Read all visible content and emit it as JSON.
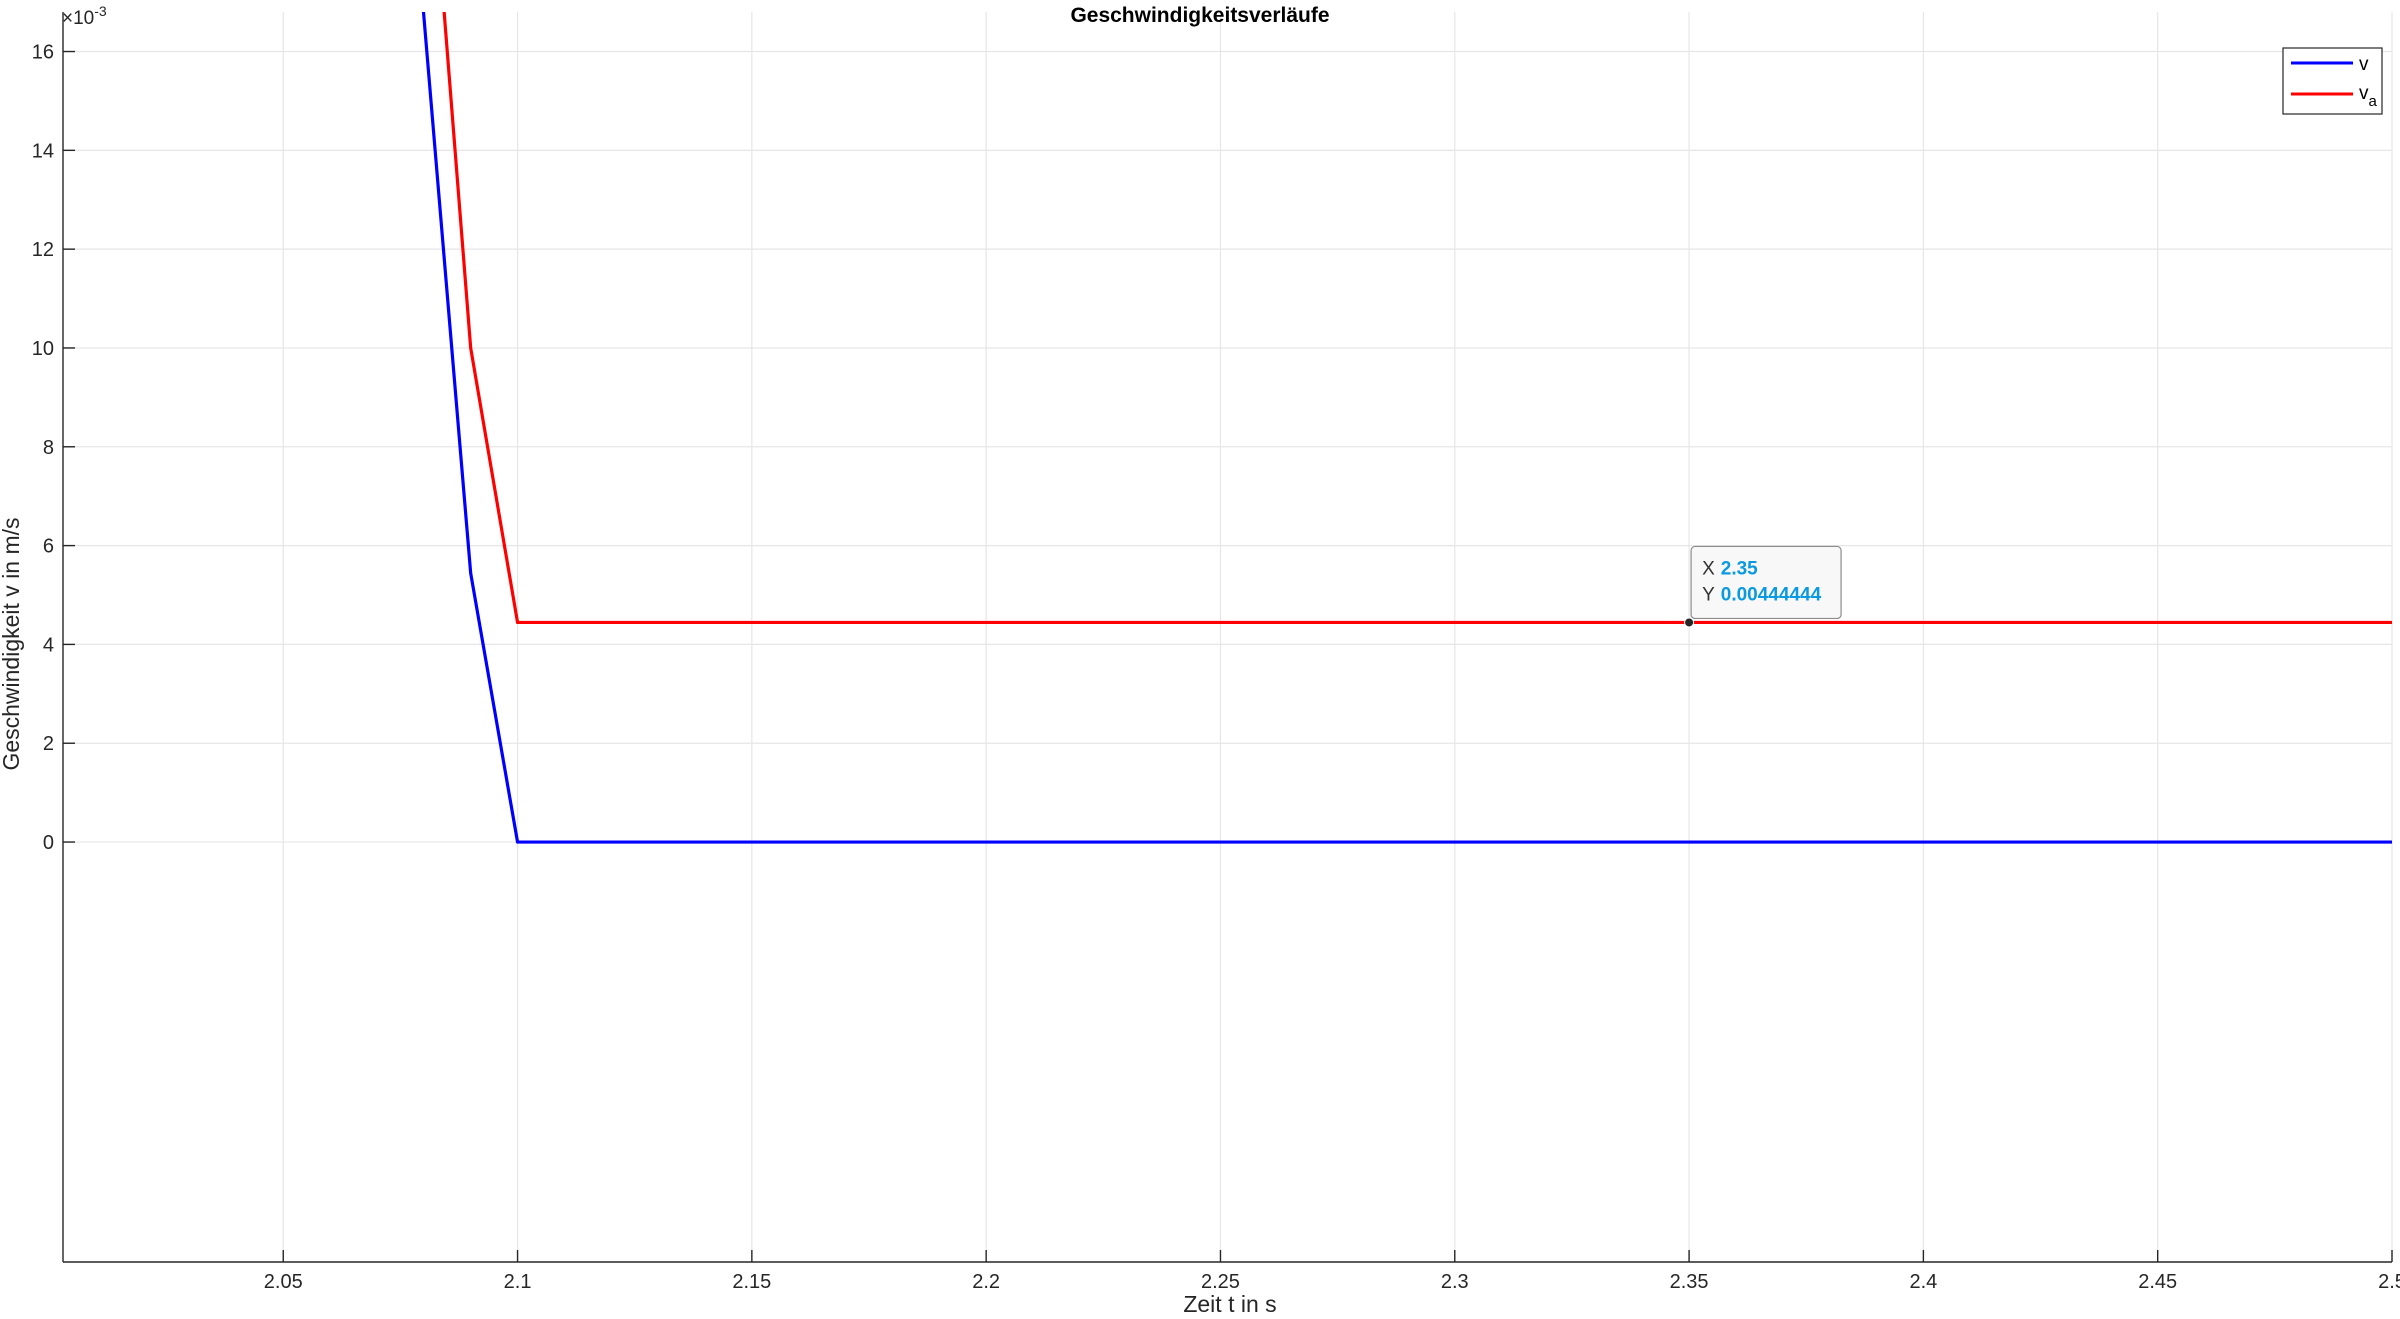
{
  "chart_data": {
    "type": "line",
    "title": "Geschwindigkeitsverläufe",
    "xlabel": "Zeit t in s",
    "ylabel": "Geschwindigkeit v in m/s",
    "y_exponent_base": "×10",
    "y_exponent_power": "-3",
    "xlim": [
      2.003,
      2.5
    ],
    "ylim": [
      -8.5,
      16.8
    ],
    "xticks": [
      2.05,
      2.1,
      2.15,
      2.2,
      2.25,
      2.3,
      2.35,
      2.4,
      2.45,
      2.5
    ],
    "xtick_labels": [
      "2.05",
      "2.1",
      "2.15",
      "2.2",
      "2.25",
      "2.3",
      "2.35",
      "2.4",
      "2.45",
      "2.5"
    ],
    "yticks": [
      0,
      2,
      4,
      6,
      8,
      10,
      12,
      14,
      16
    ],
    "ytick_labels": [
      "0",
      "2",
      "4",
      "6",
      "8",
      "10",
      "12",
      "14",
      "16"
    ],
    "grid": true,
    "legend_position": "top-right",
    "series": [
      {
        "name": "v",
        "color": "#0000ff",
        "x": [
          2.07,
          2.09,
          2.1,
          2.5
        ],
        "y": [
          28.0,
          5.44,
          0.0,
          0.0
        ]
      },
      {
        "name": "v_a",
        "color": "#ff0000",
        "x": [
          2.08,
          2.09,
          2.1,
          2.5
        ],
        "y": [
          22.0,
          10.0,
          4.44444,
          4.44444
        ]
      }
    ],
    "legend": [
      {
        "label": "v",
        "subscript": "",
        "color": "#0000ff"
      },
      {
        "label": "v",
        "subscript": "a",
        "color": "#ff0000"
      }
    ],
    "datatip": {
      "x_key": "X",
      "x_value": "2.35",
      "y_key": "Y",
      "y_value": "0.00444444",
      "x": 2.35,
      "y": 4.44444
    }
  }
}
